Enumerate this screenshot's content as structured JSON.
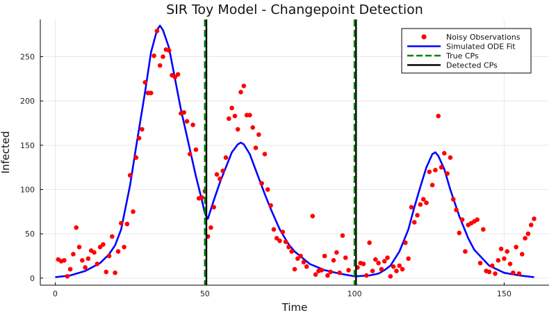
{
  "chart_data": {
    "type": "line",
    "title": "SIR Toy Model - Changepoint Detection",
    "xlabel": "Time",
    "ylabel": "Infected",
    "xlim": [
      -5,
      165
    ],
    "ylim": [
      -8,
      292
    ],
    "xticks": [
      0,
      50,
      100,
      150
    ],
    "yticks": [
      0,
      50,
      100,
      150,
      200,
      250
    ],
    "grid": true,
    "legend_position": "top-right",
    "colors": {
      "observations": "#ff0000",
      "fit": "#0000ff",
      "true_cp": "#008000",
      "detected_cp": "#000000"
    },
    "legend": [
      {
        "key": "obs",
        "label": "Noisy Observations"
      },
      {
        "key": "fit",
        "label": "Simulated ODE Fit"
      },
      {
        "key": "true",
        "label": "True CPs"
      },
      {
        "key": "det",
        "label": "Detected CPs"
      }
    ],
    "true_cps": [
      50,
      100
    ],
    "detected_cps": [
      50.5,
      100.5
    ],
    "fit_points": [
      [
        0,
        1
      ],
      [
        5,
        3
      ],
      [
        10,
        8
      ],
      [
        15,
        17
      ],
      [
        18,
        27
      ],
      [
        20,
        37
      ],
      [
        22,
        55
      ],
      [
        25,
        105
      ],
      [
        27,
        148
      ],
      [
        30,
        210
      ],
      [
        32,
        255
      ],
      [
        34,
        280
      ],
      [
        35,
        285
      ],
      [
        36,
        280
      ],
      [
        38,
        260
      ],
      [
        40,
        225
      ],
      [
        42,
        190
      ],
      [
        45,
        145
      ],
      [
        47,
        115
      ],
      [
        49,
        88
      ],
      [
        50,
        73
      ],
      [
        51,
        67
      ],
      [
        53,
        88
      ],
      [
        55,
        108
      ],
      [
        57,
        125
      ],
      [
        59,
        142
      ],
      [
        61,
        151
      ],
      [
        62,
        153
      ],
      [
        63,
        151
      ],
      [
        65,
        140
      ],
      [
        67,
        122
      ],
      [
        70,
        95
      ],
      [
        72,
        78
      ],
      [
        75,
        55
      ],
      [
        78,
        38
      ],
      [
        80,
        30
      ],
      [
        85,
        16
      ],
      [
        90,
        9
      ],
      [
        95,
        5
      ],
      [
        100,
        2
      ],
      [
        105,
        3
      ],
      [
        108,
        5
      ],
      [
        110,
        9
      ],
      [
        112,
        14
      ],
      [
        115,
        30
      ],
      [
        118,
        55
      ],
      [
        120,
        80
      ],
      [
        122,
        103
      ],
      [
        124,
        125
      ],
      [
        126,
        140
      ],
      [
        127,
        142
      ],
      [
        128,
        138
      ],
      [
        130,
        123
      ],
      [
        132,
        100
      ],
      [
        135,
        70
      ],
      [
        138,
        45
      ],
      [
        140,
        32
      ],
      [
        145,
        14
      ],
      [
        150,
        6
      ],
      [
        155,
        3
      ],
      [
        160,
        1
      ]
    ],
    "observations": [
      [
        1,
        21
      ],
      [
        2,
        19
      ],
      [
        3,
        20
      ],
      [
        4,
        2
      ],
      [
        5,
        10
      ],
      [
        6,
        27
      ],
      [
        7,
        57
      ],
      [
        8,
        35
      ],
      [
        9,
        20
      ],
      [
        10,
        12
      ],
      [
        11,
        22
      ],
      [
        12,
        31
      ],
      [
        13,
        29
      ],
      [
        14,
        16
      ],
      [
        15,
        35
      ],
      [
        16,
        38
      ],
      [
        17,
        7
      ],
      [
        18,
        25
      ],
      [
        19,
        47
      ],
      [
        20,
        6
      ],
      [
        21,
        30
      ],
      [
        22,
        62
      ],
      [
        23,
        35
      ],
      [
        24,
        61
      ],
      [
        25,
        116
      ],
      [
        26,
        75
      ],
      [
        27,
        136
      ],
      [
        28,
        158
      ],
      [
        29,
        168
      ],
      [
        30,
        221
      ],
      [
        31,
        209
      ],
      [
        32,
        209
      ],
      [
        33,
        251
      ],
      [
        34,
        279
      ],
      [
        35,
        240
      ],
      [
        36,
        250
      ],
      [
        37,
        258
      ],
      [
        38,
        257
      ],
      [
        39,
        229
      ],
      [
        40,
        227
      ],
      [
        41,
        230
      ],
      [
        42,
        186
      ],
      [
        43,
        187
      ],
      [
        44,
        177
      ],
      [
        45,
        140
      ],
      [
        46,
        173
      ],
      [
        47,
        145
      ],
      [
        48,
        90
      ],
      [
        49,
        91
      ],
      [
        50,
        98
      ],
      [
        51,
        47
      ],
      [
        52,
        57
      ],
      [
        53,
        80
      ],
      [
        54,
        117
      ],
      [
        55,
        112
      ],
      [
        56,
        121
      ],
      [
        57,
        136
      ],
      [
        58,
        180
      ],
      [
        59,
        192
      ],
      [
        60,
        183
      ],
      [
        61,
        168
      ],
      [
        62,
        210
      ],
      [
        63,
        217
      ],
      [
        64,
        184
      ],
      [
        65,
        184
      ],
      [
        66,
        170
      ],
      [
        67,
        147
      ],
      [
        68,
        162
      ],
      [
        69,
        107
      ],
      [
        70,
        140
      ],
      [
        71,
        100
      ],
      [
        72,
        82
      ],
      [
        73,
        55
      ],
      [
        74,
        45
      ],
      [
        75,
        42
      ],
      [
        76,
        52
      ],
      [
        77,
        41
      ],
      [
        78,
        35
      ],
      [
        79,
        30
      ],
      [
        80,
        10
      ],
      [
        81,
        22
      ],
      [
        82,
        25
      ],
      [
        83,
        18
      ],
      [
        84,
        13
      ],
      [
        86,
        70
      ],
      [
        87,
        4
      ],
      [
        88,
        8
      ],
      [
        89,
        9
      ],
      [
        90,
        25
      ],
      [
        91,
        3
      ],
      [
        92,
        7
      ],
      [
        93,
        20
      ],
      [
        94,
        29
      ],
      [
        95,
        6
      ],
      [
        96,
        48
      ],
      [
        97,
        23
      ],
      [
        98,
        9
      ],
      [
        101,
        12
      ],
      [
        102,
        17
      ],
      [
        103,
        16
      ],
      [
        104,
        3
      ],
      [
        105,
        40
      ],
      [
        106,
        8
      ],
      [
        107,
        21
      ],
      [
        108,
        17
      ],
      [
        109,
        10
      ],
      [
        110,
        19
      ],
      [
        111,
        23
      ],
      [
        112,
        2
      ],
      [
        113,
        13
      ],
      [
        114,
        8
      ],
      [
        115,
        14
      ],
      [
        116,
        10
      ],
      [
        117,
        40
      ],
      [
        118,
        22
      ],
      [
        119,
        80
      ],
      [
        120,
        63
      ],
      [
        121,
        71
      ],
      [
        122,
        83
      ],
      [
        123,
        89
      ],
      [
        124,
        85
      ],
      [
        125,
        120
      ],
      [
        126,
        105
      ],
      [
        127,
        122
      ],
      [
        128,
        183
      ],
      [
        129,
        125
      ],
      [
        130,
        141
      ],
      [
        131,
        118
      ],
      [
        132,
        136
      ],
      [
        133,
        89
      ],
      [
        134,
        77
      ],
      [
        135,
        51
      ],
      [
        136,
        66
      ],
      [
        137,
        30
      ],
      [
        138,
        60
      ],
      [
        139,
        62
      ],
      [
        140,
        64
      ],
      [
        141,
        66
      ],
      [
        142,
        17
      ],
      [
        143,
        55
      ],
      [
        144,
        8
      ],
      [
        145,
        7
      ],
      [
        146,
        14
      ],
      [
        147,
        5
      ],
      [
        148,
        20
      ],
      [
        149,
        33
      ],
      [
        150,
        22
      ],
      [
        151,
        30
      ],
      [
        152,
        16
      ],
      [
        153,
        6
      ],
      [
        154,
        35
      ],
      [
        155,
        5
      ],
      [
        156,
        27
      ],
      [
        157,
        45
      ],
      [
        158,
        50
      ],
      [
        159,
        60
      ],
      [
        160,
        67
      ]
    ]
  }
}
